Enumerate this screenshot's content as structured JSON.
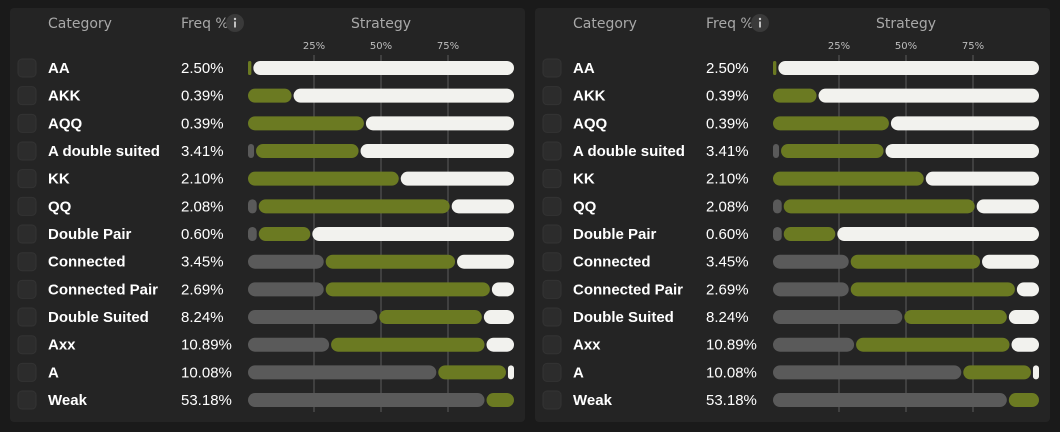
{
  "panels": [
    {
      "header": {
        "category": "Category",
        "freq": "Freq %",
        "strategy": "Strategy"
      },
      "ticks": [
        {
          "value": 25,
          "label": "25%"
        },
        {
          "value": 50,
          "label": "50%"
        },
        {
          "value": 75,
          "label": "75%"
        }
      ],
      "rows": [
        {
          "category": "AA",
          "freq": "2.50%",
          "strategy": [
            0,
            2,
            98
          ]
        },
        {
          "category": "AKK",
          "freq": "0.39%",
          "strategy": [
            0,
            17,
            83
          ]
        },
        {
          "category": "AQQ",
          "freq": "0.39%",
          "strategy": [
            0,
            44,
            56
          ]
        },
        {
          "category": "A double suited",
          "freq": "3.41%",
          "strategy": [
            3,
            39,
            58
          ]
        },
        {
          "category": "KK",
          "freq": "2.10%",
          "strategy": [
            0,
            57,
            43
          ]
        },
        {
          "category": "QQ",
          "freq": "2.08%",
          "strategy": [
            4,
            72,
            24
          ]
        },
        {
          "category": "Double Pair",
          "freq": "0.60%",
          "strategy": [
            4,
            20,
            76
          ]
        },
        {
          "category": "Connected",
          "freq": "3.45%",
          "strategy": [
            29,
            49,
            22
          ]
        },
        {
          "category": "Connected Pair",
          "freq": "2.69%",
          "strategy": [
            29,
            62,
            9
          ]
        },
        {
          "category": "Double Suited",
          "freq": "8.24%",
          "strategy": [
            49,
            39,
            12
          ]
        },
        {
          "category": "Axx",
          "freq": "10.89%",
          "strategy": [
            31,
            58,
            11
          ]
        },
        {
          "category": "A",
          "freq": "10.08%",
          "strategy": [
            71,
            26,
            3
          ]
        },
        {
          "category": "Weak",
          "freq": "53.18%",
          "strategy": [
            89,
            11,
            0
          ]
        }
      ]
    },
    {
      "header": {
        "category": "Category",
        "freq": "Freq %",
        "strategy": "Strategy"
      },
      "ticks": [
        {
          "value": 25,
          "label": "25%"
        },
        {
          "value": 50,
          "label": "50%"
        },
        {
          "value": 75,
          "label": "75%"
        }
      ],
      "rows": [
        {
          "category": "AA",
          "freq": "2.50%",
          "strategy": [
            0,
            2,
            98
          ]
        },
        {
          "category": "AKK",
          "freq": "0.39%",
          "strategy": [
            0,
            17,
            83
          ]
        },
        {
          "category": "AQQ",
          "freq": "0.39%",
          "strategy": [
            0,
            44,
            56
          ]
        },
        {
          "category": "A double suited",
          "freq": "3.41%",
          "strategy": [
            3,
            39,
            58
          ]
        },
        {
          "category": "KK",
          "freq": "2.10%",
          "strategy": [
            0,
            57,
            43
          ]
        },
        {
          "category": "QQ",
          "freq": "2.08%",
          "strategy": [
            4,
            72,
            24
          ]
        },
        {
          "category": "Double Pair",
          "freq": "0.60%",
          "strategy": [
            4,
            20,
            76
          ]
        },
        {
          "category": "Connected",
          "freq": "3.45%",
          "strategy": [
            29,
            49,
            22
          ]
        },
        {
          "category": "Connected Pair",
          "freq": "2.69%",
          "strategy": [
            29,
            62,
            9
          ]
        },
        {
          "category": "Double Suited",
          "freq": "8.24%",
          "strategy": [
            49,
            39,
            12
          ]
        },
        {
          "category": "Axx",
          "freq": "10.89%",
          "strategy": [
            31,
            58,
            11
          ]
        },
        {
          "category": "A",
          "freq": "10.08%",
          "strategy": [
            71,
            26,
            3
          ]
        },
        {
          "category": "Weak",
          "freq": "53.18%",
          "strategy": [
            88,
            12,
            0
          ]
        }
      ]
    }
  ]
}
